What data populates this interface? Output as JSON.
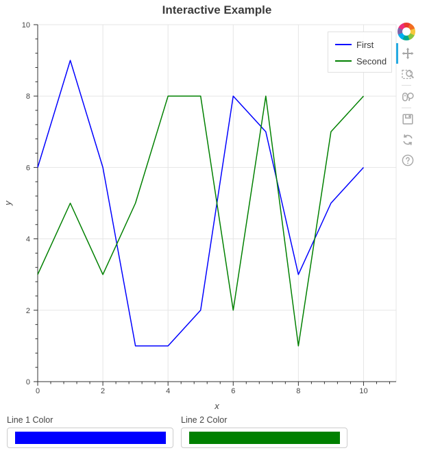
{
  "chart_data": {
    "type": "line",
    "title": "Interactive Example",
    "x": [
      0,
      1,
      2,
      3,
      4,
      5,
      6,
      7,
      8,
      9,
      10
    ],
    "series": [
      {
        "name": "First",
        "color": "#0000ff",
        "values": [
          6,
          9,
          6,
          1,
          1,
          2,
          8,
          7,
          3,
          5,
          6
        ]
      },
      {
        "name": "Second",
        "color": "#008000",
        "values": [
          3,
          5,
          3,
          5,
          8,
          8,
          2,
          8,
          1,
          7,
          8
        ]
      }
    ],
    "xlabel": "x",
    "ylabel": "y",
    "xlim": [
      0,
      11
    ],
    "ylim": [
      0,
      10
    ],
    "x_major_ticks": [
      0,
      2,
      4,
      6,
      8,
      10
    ],
    "y_major_ticks": [
      0,
      2,
      4,
      6,
      8,
      10
    ],
    "minor_tick_step": 0.4,
    "grid": true,
    "legend_position": "top-right"
  },
  "legend": {
    "items": [
      {
        "label": "First",
        "color": "#0000ff"
      },
      {
        "label": "Second",
        "color": "#008000"
      }
    ]
  },
  "toolbar": {
    "logo": "bokeh-logo",
    "active_color": "#26aae1",
    "tools": [
      {
        "name": "pan",
        "active": true
      },
      {
        "name": "box-zoom",
        "separator_after": true
      },
      {
        "name": "wheel-zoom",
        "separator_after": true
      },
      {
        "name": "save"
      },
      {
        "name": "reset"
      },
      {
        "name": "help"
      }
    ]
  },
  "widgets": [
    {
      "label": "Line 1 Color",
      "value": "#0000ff"
    },
    {
      "label": "Line 2 Color",
      "value": "#008000"
    }
  ]
}
